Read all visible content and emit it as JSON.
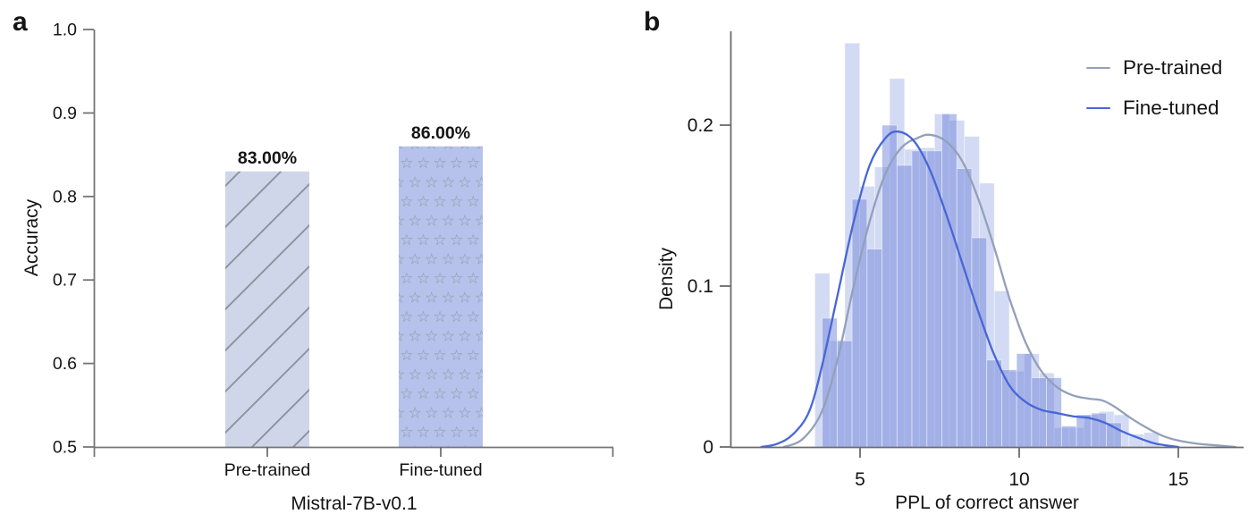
{
  "chart_data": [
    {
      "id": "panel_a",
      "type": "bar",
      "panel_label": "a",
      "title": "",
      "xlabel": "Mistral-7B-v0.1",
      "ylabel": "Accuracy",
      "categories": [
        "Pre-trained",
        "Fine-tuned"
      ],
      "values": [
        0.83,
        0.86
      ],
      "value_labels": [
        "83.00%",
        "86.00%"
      ],
      "ylim": [
        0.5,
        1.0
      ],
      "yticks": [
        0.5,
        0.6,
        0.7,
        0.8,
        0.9,
        1.0
      ],
      "ytick_labels": [
        "0.5",
        "0.6",
        "0.7",
        "0.8",
        "0.9",
        "1.0"
      ],
      "grid": false,
      "bar_styles": [
        {
          "name": "Pre-trained",
          "fill": "#cfd6ea",
          "pattern": "diagonal-hatch",
          "pattern_color": "#8e949e"
        },
        {
          "name": "Fine-tuned",
          "fill": "#b6c1ec",
          "pattern": "stars",
          "pattern_color": "#9097a5"
        }
      ],
      "axis_color": "#757575",
      "text_color": "#141414"
    },
    {
      "id": "panel_b",
      "type": "bar",
      "subtype": "histogram-with-kde",
      "panel_label": "b",
      "title": "",
      "xlabel": "PPL of correct answer",
      "ylabel": "Density",
      "xlim": [
        0.93,
        17.05
      ],
      "ylim": [
        0,
        0.258
      ],
      "xticks": [
        5,
        10,
        15
      ],
      "xtick_labels": [
        "5",
        "10",
        "15"
      ],
      "yticks": [
        0,
        0.1,
        0.2
      ],
      "ytick_labels": [
        "0",
        "0.1",
        "0.2"
      ],
      "grid": false,
      "bin_width": 0.47,
      "histograms": [
        {
          "name": "Pre-trained",
          "fill": "rgba(164,178,229,0.48)",
          "bin_start": 3.58,
          "heights": [
            0.108,
            0.066,
            0.251,
            0.162,
            0.174,
            0.229,
            0.185,
            0.186,
            0.207,
            0.203,
            0.193,
            0.164,
            0.097,
            0.047,
            0.058,
            0.046,
            0.012,
            0.012,
            0.02,
            0.022,
            0.02,
            0.008,
            0.009
          ]
        },
        {
          "name": "Fine-tuned",
          "fill": "rgba(116,139,221,0.52)",
          "bin_start": 3.81,
          "heights": [
            0.08,
            0.066,
            0.154,
            0.123,
            0.2,
            0.175,
            0.184,
            0.184,
            0.207,
            0.173,
            0.13,
            0.054,
            0.048,
            0.058,
            0.043,
            0.043,
            0.013,
            0.02,
            0.021,
            0.015
          ]
        }
      ],
      "kde_curves": [
        {
          "name": "Pre-trained",
          "color": "#93a0bb",
          "x": [
            2.6,
            3.2,
            3.8,
            4.3,
            4.8,
            5.3,
            5.8,
            6.3,
            6.8,
            7.2,
            7.7,
            8.2,
            8.7,
            9.2,
            9.7,
            10.2,
            10.7,
            11.2,
            11.7,
            12.2,
            12.6,
            13.0,
            13.5,
            14.0,
            14.5,
            15.0,
            15.6,
            16.2,
            16.8
          ],
          "y": [
            0.0,
            0.005,
            0.022,
            0.055,
            0.1,
            0.14,
            0.17,
            0.186,
            0.192,
            0.194,
            0.19,
            0.178,
            0.155,
            0.125,
            0.092,
            0.065,
            0.047,
            0.037,
            0.032,
            0.03,
            0.029,
            0.025,
            0.018,
            0.012,
            0.007,
            0.004,
            0.002,
            0.001,
            0.0
          ]
        },
        {
          "name": "Fine-tuned",
          "color": "#4866d5",
          "x": [
            1.9,
            2.4,
            2.9,
            3.4,
            3.8,
            4.3,
            4.8,
            5.3,
            5.8,
            6.2,
            6.7,
            7.2,
            7.7,
            8.2,
            8.7,
            9.2,
            9.7,
            10.2,
            10.7,
            11.2,
            11.7,
            12.2,
            12.7,
            13.2,
            13.7,
            14.3,
            15.0
          ],
          "y": [
            0.0,
            0.002,
            0.008,
            0.022,
            0.05,
            0.095,
            0.14,
            0.175,
            0.192,
            0.196,
            0.19,
            0.172,
            0.145,
            0.115,
            0.085,
            0.058,
            0.038,
            0.028,
            0.023,
            0.021,
            0.019,
            0.018,
            0.015,
            0.01,
            0.006,
            0.002,
            0.0
          ]
        }
      ],
      "legend": {
        "position": "top-right",
        "entries": [
          {
            "label": "Pre-trained",
            "color": "#93a0bb"
          },
          {
            "label": "Fine-tuned",
            "color": "#4866d5"
          }
        ]
      },
      "axis_color": "#6b6b6b",
      "text_color": "#141414"
    }
  ]
}
